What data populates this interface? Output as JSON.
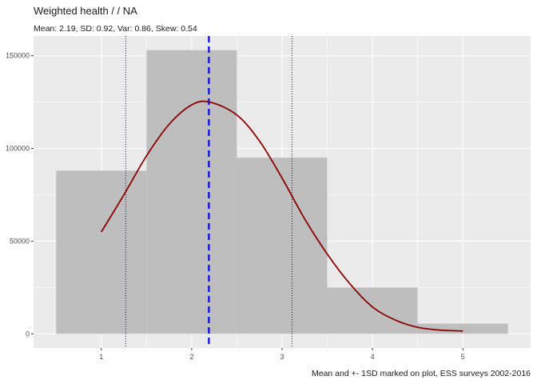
{
  "chart_data": {
    "type": "bar",
    "title": "Weighted  health /  / NA",
    "subtitle": "Mean: 2.19, SD: 0.92, Var: 0.86, Skew: 0.54",
    "caption": "Mean and +- 1SD marked on plot, ESS surveys 2002-2016",
    "xlabel": "",
    "ylabel": "",
    "categories": [
      1,
      2,
      3,
      4,
      5
    ],
    "values": [
      88000,
      153000,
      95000,
      25000,
      5500
    ],
    "bar_width": 1,
    "xlim": [
      0.25,
      5.75
    ],
    "ylim": [
      -7650,
      160650
    ],
    "x_ticks": [
      1,
      2,
      3,
      4,
      5
    ],
    "y_ticks": [
      0,
      50000,
      100000,
      150000
    ],
    "y_tick_labels": [
      "0",
      "50000",
      "100000",
      "150000"
    ],
    "mean": 2.19,
    "sd": 0.92,
    "mean_line": {
      "x": 2.19,
      "style": "dashed",
      "color": "#0000ff"
    },
    "sd_lines": [
      {
        "x": 1.27,
        "style": "dotted",
        "color": "#0000cd"
      },
      {
        "x": 3.11,
        "style": "dotted",
        "color": "#0000cd"
      }
    ],
    "density_curve": {
      "color": "#8b0000",
      "x": [
        1,
        1.25,
        1.5,
        1.75,
        2,
        2.2,
        2.5,
        2.75,
        3,
        3.25,
        3.5,
        3.75,
        4,
        4.25,
        4.5,
        4.75,
        5
      ],
      "y": [
        55000,
        75000,
        96000,
        113000,
        123500,
        125000,
        118000,
        104000,
        84000,
        62000,
        43000,
        27000,
        14500,
        7500,
        3500,
        2000,
        1500
      ]
    },
    "grid": true,
    "legend": "none",
    "colors": {
      "panel_background": "#ebebeb",
      "grid_major": "#ffffff",
      "bar_fill": "#bebebe"
    }
  }
}
